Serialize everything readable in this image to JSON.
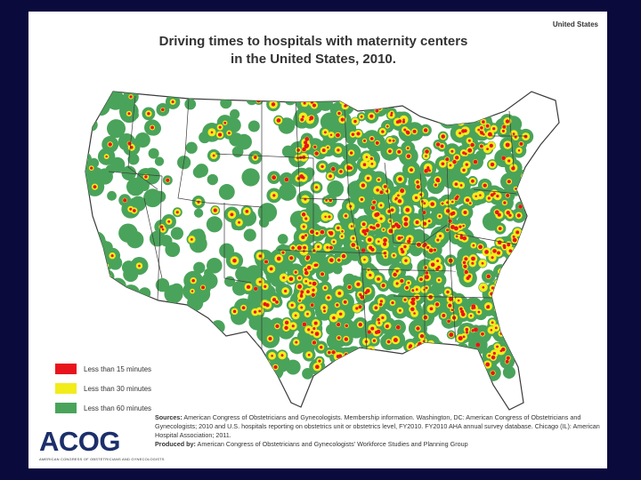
{
  "corner_label": "United States",
  "title": {
    "line1": "Driving times to hospitals with maternity centers",
    "line2": "in the United States, 2010."
  },
  "legend": [
    {
      "label": "Less than 15 minutes",
      "color": "#e8141c"
    },
    {
      "label": "Less than 30 minutes",
      "color": "#f2ec1b"
    },
    {
      "label": "Less than 60 minutes",
      "color": "#4aa35a"
    }
  ],
  "sources": {
    "sources_label": "Sources:",
    "sources_text": "American Congress of Obstetricians and Gynecologists. Membership information. Washington, DC: American Congress of Obstetricians and Gynecologists; 2010 and U.S. hospitals reporting on obstetrics unit or obstetrics level, FY2010. FY2010 AHA annual survey database. Chicago (IL): American Hospital Association; 2011.",
    "produced_label": "Produced by:",
    "produced_text": "American Congress of Obstetricians and Gynecologists' Workforce Studies and Planning Group"
  },
  "logo": {
    "name": "ACOG",
    "tagline": "AMERICAN CONGRESS OF OBSTETRICIANS AND GYNECOLOGISTS"
  },
  "colors": {
    "background": "#0a0a3c",
    "land": "#ffffff",
    "state_border": "#3b3b3b",
    "red": "#e8141c",
    "yellow": "#f2ec1b",
    "green": "#4aa35a"
  }
}
